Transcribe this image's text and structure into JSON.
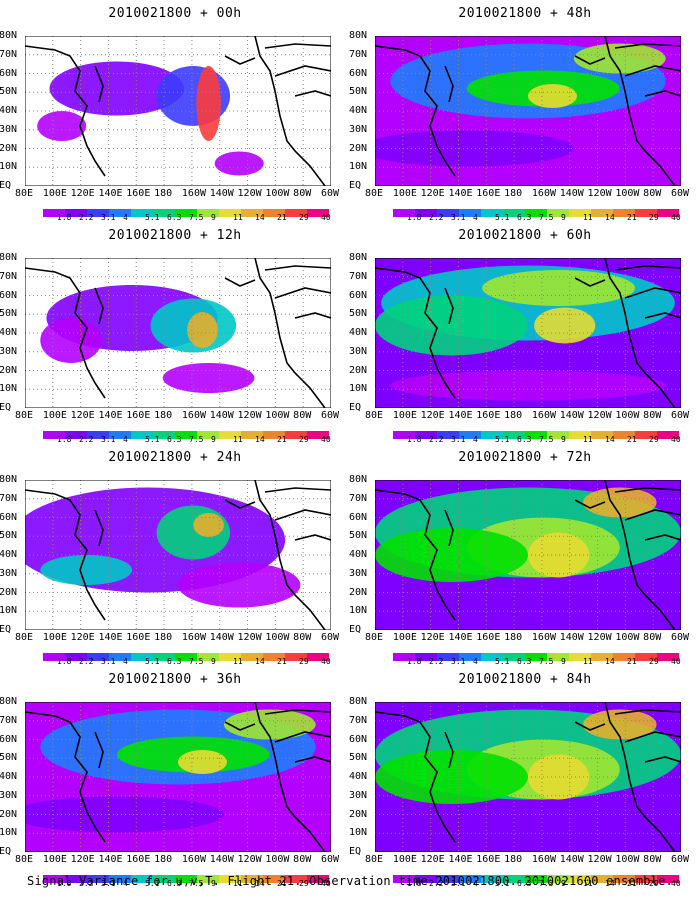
{
  "lat_labels": [
    "80N",
    "70N",
    "60N",
    "50N",
    "40N",
    "30N",
    "20N",
    "10N",
    "EQ"
  ],
  "lon_labels": [
    "80E",
    "100E",
    "120E",
    "140E",
    "160E",
    "180",
    "160W",
    "140W",
    "120W",
    "100W",
    "80W",
    "60W"
  ],
  "colorbar": {
    "labels": [
      "1.8",
      "2.2",
      "3.1",
      "4",
      "5.1",
      "6.3",
      "7.5",
      "9",
      "11",
      "14",
      "21",
      "29",
      "40"
    ],
    "colors": [
      "#b400ff",
      "#8000ff",
      "#3c3cff",
      "#1e7dff",
      "#00c8c8",
      "#00d27d",
      "#00e100",
      "#a0e632",
      "#e6dc32",
      "#e6af2d",
      "#f08228",
      "#fa3c3c",
      "#f00082"
    ]
  },
  "panels": [
    {
      "title": "2010021800 + 00h",
      "intensity": "very-low"
    },
    {
      "title": "2010021800 + 48h",
      "intensity": "medium"
    },
    {
      "title": "2010021800 + 12h",
      "intensity": "low"
    },
    {
      "title": "2010021800 + 60h",
      "intensity": "medium-high"
    },
    {
      "title": "2010021800 + 24h",
      "intensity": "low-medium"
    },
    {
      "title": "2010021800 + 72h",
      "intensity": "high"
    },
    {
      "title": "2010021800 + 36h",
      "intensity": "medium"
    },
    {
      "title": "2010021800 + 84h",
      "intensity": "high"
    }
  ],
  "caption": "Signal Variance for u,v,T. Flight 21. Observation time 2010021800. 2010021600 ensemble."
}
